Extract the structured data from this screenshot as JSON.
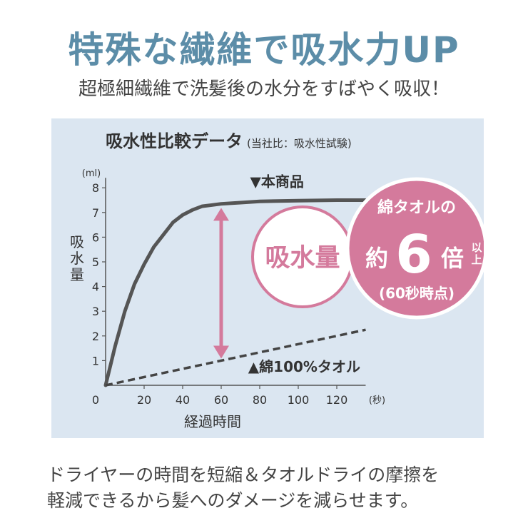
{
  "headline": "特殊な繊維で吸水力UP",
  "subheadline": "超極細繊維で洗髪後の水分をすばやく吸収！",
  "colors": {
    "headline": "#5c8da8",
    "panel": "#dbe6f1",
    "product_line": "#555555",
    "cotton_line": "#444444",
    "accent_pink": "#d47a9c",
    "text": "#333333"
  },
  "callouts": {
    "absorption": "吸水量",
    "badge_top": "綿タオルの",
    "badge_prefix": "約",
    "badge_number": "6",
    "badge_suffix": "倍",
    "badge_ijou": "以上",
    "badge_note": "(60秒時点)"
  },
  "footer": {
    "line1": "ドライヤーの時間を短縮＆タオルドライの摩擦を",
    "line2": "軽減できるから髪へのダメージを減らせます。"
  },
  "chart_data": {
    "type": "line",
    "title": "吸水性比較データ",
    "subtitle": "(当社比：吸水性試験)",
    "xlabel": "経過時間",
    "x_unit": "(秒)",
    "ylabel": "吸水量",
    "y_unit": "(ml)",
    "xlim": [
      0,
      135
    ],
    "ylim": [
      0,
      8
    ],
    "x_ticks": [
      0,
      20,
      40,
      60,
      80,
      100,
      120
    ],
    "y_ticks": [
      1,
      2,
      3,
      4,
      5,
      6,
      7,
      8
    ],
    "grid": false,
    "series": [
      {
        "name": "▼本商品",
        "x": [
          0,
          5,
          10,
          15,
          20,
          25,
          30,
          35,
          40,
          45,
          50,
          55,
          60,
          70,
          80,
          100,
          120,
          135
        ],
        "y": [
          0,
          1.6,
          3.0,
          4.1,
          4.9,
          5.6,
          6.1,
          6.6,
          6.9,
          7.1,
          7.25,
          7.3,
          7.35,
          7.4,
          7.45,
          7.48,
          7.5,
          7.5
        ],
        "style": "solid"
      },
      {
        "name": "▲綿100%タオル",
        "x": [
          0,
          135
        ],
        "y": [
          0,
          2.25
        ],
        "style": "dashed"
      }
    ],
    "annotation": {
      "x": 60,
      "y_from": 1.2,
      "y_to": 7.3
    }
  }
}
